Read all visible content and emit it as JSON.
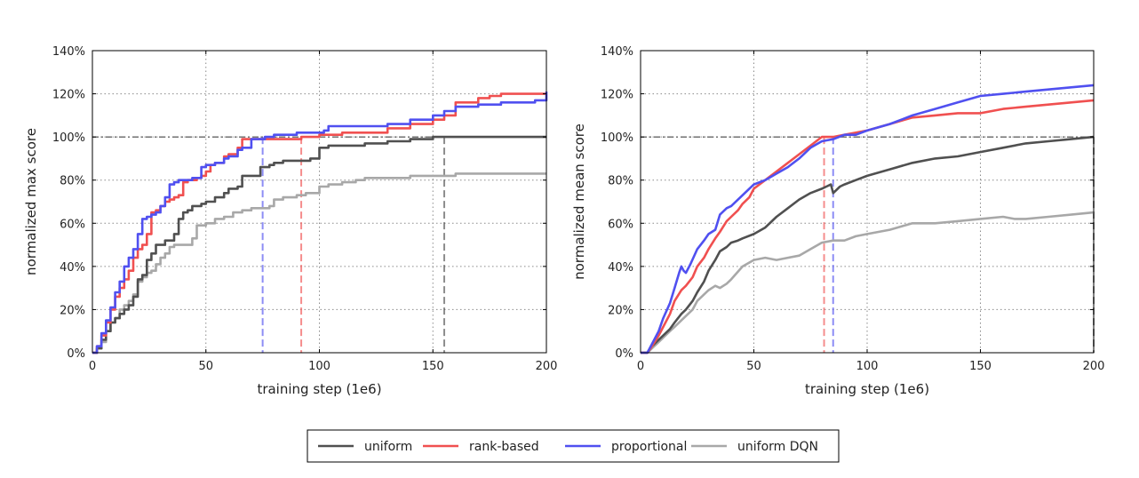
{
  "legend": {
    "entries": [
      {
        "name": "uniform",
        "color": "#505050"
      },
      {
        "name": "rank-based",
        "color": "#f05050"
      },
      {
        "name": "proportional",
        "color": "#5050f0"
      },
      {
        "name": "uniform DQN",
        "color": "#a8a8a8"
      }
    ]
  },
  "chart_data": [
    {
      "type": "line",
      "title": "",
      "xlabel": "training step (1e6)",
      "ylabel": "normalized max score",
      "xlim": [
        0,
        200
      ],
      "ylim": [
        0,
        140
      ],
      "xticks": [
        0,
        50,
        100,
        150,
        200
      ],
      "xtick_labels": [
        "0",
        "50",
        "100",
        "150",
        "200"
      ],
      "yticks": [
        0,
        20,
        40,
        60,
        80,
        100,
        120,
        140
      ],
      "ytick_labels": [
        "0%",
        "20%",
        "40%",
        "60%",
        "80%",
        "100%",
        "120%",
        "140%"
      ],
      "grid": true,
      "reference_line_y": 100,
      "vertical_markers": [
        {
          "series": "proportional",
          "x": 75
        },
        {
          "series": "rank-based",
          "x": 92
        },
        {
          "series": "uniform",
          "x": 155
        }
      ],
      "series": [
        {
          "name": "uniform",
          "color": "#505050",
          "step": true,
          "x": [
            0,
            2,
            4,
            6,
            8,
            10,
            12,
            14,
            16,
            18,
            20,
            22,
            24,
            26,
            28,
            32,
            36,
            38,
            40,
            42,
            44,
            46,
            48,
            50,
            54,
            58,
            60,
            64,
            66,
            70,
            74,
            78,
            80,
            84,
            88,
            92,
            96,
            100,
            104,
            110,
            120,
            130,
            140,
            150,
            160,
            200
          ],
          "y": [
            0,
            2,
            6,
            10,
            14,
            16,
            18,
            20,
            22,
            26,
            34,
            36,
            43,
            46,
            50,
            52,
            55,
            62,
            65,
            66,
            68,
            68,
            69,
            70,
            72,
            74,
            76,
            77,
            82,
            82,
            86,
            87,
            88,
            89,
            89,
            89,
            90,
            95,
            96,
            96,
            97,
            98,
            99,
            100,
            100,
            100
          ]
        },
        {
          "name": "rank-based",
          "color": "#f05050",
          "step": true,
          "x": [
            0,
            2,
            4,
            6,
            8,
            10,
            12,
            14,
            16,
            18,
            20,
            22,
            24,
            26,
            28,
            30,
            32,
            34,
            36,
            38,
            40,
            42,
            44,
            46,
            48,
            50,
            52,
            54,
            56,
            58,
            60,
            64,
            66,
            70,
            74,
            78,
            82,
            92,
            96,
            100,
            110,
            130,
            140,
            150,
            155,
            160,
            170,
            175,
            180,
            200
          ],
          "y": [
            0,
            3,
            8,
            14,
            20,
            26,
            30,
            34,
            38,
            44,
            48,
            50,
            55,
            65,
            66,
            68,
            70,
            71,
            72,
            73,
            79,
            80,
            80,
            81,
            82,
            84,
            87,
            88,
            88,
            91,
            92,
            95,
            99,
            99,
            99,
            99,
            99,
            100,
            100,
            101,
            102,
            104,
            106,
            108,
            110,
            116,
            118,
            119,
            120,
            120
          ]
        },
        {
          "name": "proportional",
          "color": "#5050f0",
          "step": true,
          "x": [
            0,
            2,
            4,
            6,
            8,
            10,
            12,
            14,
            16,
            18,
            20,
            22,
            24,
            26,
            28,
            30,
            32,
            34,
            36,
            38,
            40,
            44,
            48,
            50,
            54,
            58,
            60,
            64,
            66,
            70,
            74,
            76,
            80,
            90,
            100,
            102,
            104,
            110,
            130,
            140,
            150,
            155,
            160,
            170,
            180,
            195,
            200
          ],
          "y": [
            0,
            3,
            9,
            15,
            21,
            28,
            33,
            40,
            44,
            48,
            55,
            62,
            63,
            64,
            65,
            68,
            72,
            78,
            79,
            80,
            80,
            81,
            86,
            87,
            88,
            90,
            91,
            94,
            95,
            99,
            99,
            100,
            101,
            102,
            102,
            103,
            105,
            105,
            106,
            108,
            110,
            112,
            114,
            115,
            116,
            117,
            121
          ]
        },
        {
          "name": "uniform DQN",
          "color": "#a8a8a8",
          "step": true,
          "x": [
            0,
            2,
            4,
            6,
            8,
            10,
            12,
            14,
            16,
            18,
            20,
            22,
            24,
            26,
            28,
            30,
            32,
            34,
            36,
            40,
            44,
            46,
            50,
            54,
            58,
            62,
            66,
            70,
            78,
            80,
            84,
            90,
            94,
            100,
            104,
            110,
            116,
            120,
            130,
            140,
            150,
            160,
            200
          ],
          "y": [
            0,
            2,
            5,
            10,
            14,
            16,
            20,
            22,
            24,
            27,
            33,
            35,
            37,
            38,
            41,
            44,
            46,
            49,
            50,
            50,
            53,
            59,
            60,
            62,
            63,
            65,
            66,
            67,
            68,
            71,
            72,
            73,
            74,
            77,
            78,
            79,
            80,
            81,
            81,
            82,
            82,
            83,
            83
          ]
        }
      ]
    },
    {
      "type": "line",
      "title": "",
      "xlabel": "training step (1e6)",
      "ylabel": "normalized mean score",
      "xlim": [
        0,
        200
      ],
      "ylim": [
        0,
        140
      ],
      "xticks": [
        0,
        50,
        100,
        150,
        200
      ],
      "xtick_labels": [
        "0",
        "50",
        "100",
        "150",
        "200"
      ],
      "yticks": [
        0,
        20,
        40,
        60,
        80,
        100,
        120,
        140
      ],
      "ytick_labels": [
        "0%",
        "20%",
        "40%",
        "60%",
        "80%",
        "100%",
        "120%",
        "140%"
      ],
      "grid": true,
      "reference_line_y": 100,
      "vertical_markers": [
        {
          "series": "rank-based",
          "x": 81
        },
        {
          "series": "proportional",
          "x": 85
        },
        {
          "series": "uniform",
          "x": 200
        }
      ],
      "series": [
        {
          "name": "uniform",
          "color": "#505050",
          "step": false,
          "x": [
            0,
            3,
            5,
            8,
            10,
            13,
            15,
            18,
            20,
            23,
            25,
            28,
            30,
            33,
            35,
            38,
            40,
            43,
            45,
            50,
            55,
            60,
            65,
            70,
            75,
            80,
            82,
            84,
            85,
            88,
            90,
            95,
            100,
            110,
            120,
            130,
            140,
            150,
            160,
            170,
            180,
            190,
            200
          ],
          "y": [
            0,
            0,
            3,
            6,
            8,
            11,
            14,
            18,
            20,
            24,
            28,
            33,
            38,
            43,
            47,
            49,
            51,
            52,
            53,
            55,
            58,
            63,
            67,
            71,
            74,
            76,
            77,
            78,
            74,
            77,
            78,
            80,
            82,
            85,
            88,
            90,
            91,
            93,
            95,
            97,
            98,
            99,
            100
          ]
        },
        {
          "name": "rank-based",
          "color": "#f05050",
          "step": false,
          "x": [
            0,
            3,
            5,
            8,
            10,
            13,
            15,
            18,
            20,
            23,
            25,
            28,
            30,
            33,
            35,
            38,
            40,
            43,
            45,
            48,
            50,
            55,
            60,
            65,
            70,
            75,
            80,
            85,
            90,
            95,
            100,
            110,
            120,
            130,
            140,
            150,
            160,
            170,
            180,
            190,
            200
          ],
          "y": [
            0,
            0,
            3,
            8,
            12,
            18,
            24,
            29,
            31,
            35,
            40,
            44,
            48,
            53,
            56,
            61,
            63,
            66,
            69,
            72,
            76,
            80,
            84,
            88,
            92,
            96,
            100,
            100,
            101,
            102,
            103,
            106,
            109,
            110,
            111,
            111,
            113,
            114,
            115,
            116,
            117
          ]
        },
        {
          "name": "proportional",
          "color": "#5050f0",
          "step": false,
          "x": [
            0,
            3,
            5,
            8,
            10,
            13,
            15,
            17,
            18,
            19,
            20,
            22,
            25,
            28,
            30,
            33,
            35,
            38,
            40,
            45,
            50,
            55,
            60,
            65,
            70,
            75,
            80,
            85,
            90,
            95,
            100,
            110,
            120,
            130,
            140,
            150,
            160,
            170,
            180,
            190,
            200
          ],
          "y": [
            0,
            0,
            4,
            10,
            16,
            23,
            30,
            37,
            40,
            38,
            37,
            41,
            48,
            52,
            55,
            57,
            64,
            67,
            68,
            73,
            78,
            80,
            83,
            86,
            90,
            95,
            98,
            99,
            101,
            101,
            103,
            106,
            110,
            113,
            116,
            119,
            120,
            121,
            122,
            123,
            124
          ]
        },
        {
          "name": "uniform DQN",
          "color": "#a8a8a8",
          "step": false,
          "x": [
            0,
            3,
            5,
            8,
            10,
            13,
            15,
            18,
            20,
            23,
            25,
            28,
            30,
            33,
            35,
            38,
            40,
            45,
            50,
            55,
            60,
            65,
            70,
            75,
            80,
            85,
            90,
            95,
            100,
            110,
            120,
            130,
            140,
            150,
            160,
            165,
            170,
            180,
            190,
            200
          ],
          "y": [
            0,
            0,
            2,
            5,
            7,
            10,
            12,
            15,
            17,
            20,
            24,
            27,
            29,
            31,
            30,
            32,
            34,
            40,
            43,
            44,
            43,
            44,
            45,
            48,
            51,
            52,
            52,
            54,
            55,
            57,
            60,
            60,
            61,
            62,
            63,
            62,
            62,
            63,
            64,
            65
          ]
        }
      ]
    }
  ]
}
